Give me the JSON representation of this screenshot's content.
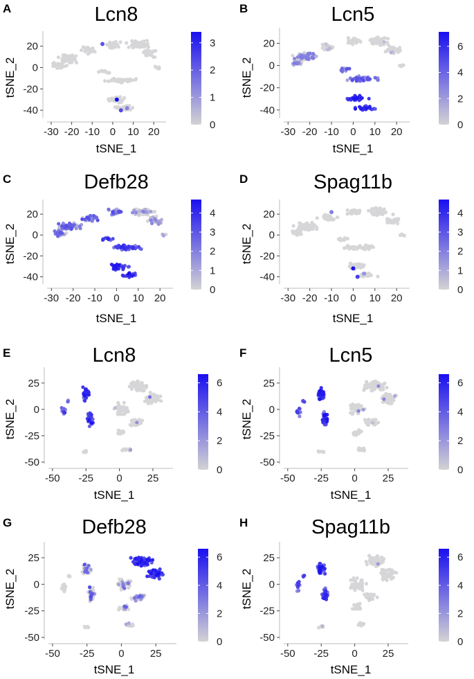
{
  "figure": {
    "background": "#ffffff"
  },
  "colors": {
    "low": "#d3d3d3",
    "high": "#1a0ff0",
    "point_base": "#d6d6d8"
  },
  "chart_data": [
    {
      "type": "scatter",
      "panel": "A",
      "title": "Lcn8",
      "xlabel": "tSNE_1",
      "ylabel": "tSNE_2",
      "xlim": [
        -32,
        26
      ],
      "ylim": [
        -47,
        34
      ],
      "xticks": [
        -30,
        -20,
        -10,
        0,
        10,
        20
      ],
      "yticks": [
        20,
        0,
        -20,
        -40
      ],
      "colorbar": {
        "min": 0,
        "max": 3.4,
        "ticks": [
          0,
          1,
          2,
          3
        ]
      },
      "expression": "sparse",
      "highlights": [
        {
          "x": 2,
          "y": -30,
          "v": 3.4
        },
        {
          "x": 4,
          "y": -40,
          "v": 2.4
        },
        {
          "x": -5,
          "y": 22,
          "v": 2.2
        },
        {
          "x": 7,
          "y": -38,
          "v": 1.4
        }
      ]
    },
    {
      "type": "scatter",
      "panel": "B",
      "title": "Lcn5",
      "xlabel": "tSNE_1",
      "ylabel": "tSNE_2",
      "xlim": [
        -32,
        26
      ],
      "ylim": [
        -47,
        34
      ],
      "xticks": [
        -30,
        -20,
        -10,
        0,
        10,
        20
      ],
      "yticks": [
        20,
        0,
        -20,
        -40
      ],
      "colorbar": {
        "min": 0,
        "max": 7.1,
        "ticks": [
          0,
          2,
          4,
          6
        ]
      },
      "expression": "lower_cluster_high"
    },
    {
      "type": "scatter",
      "panel": "C",
      "title": "Defb28",
      "xlabel": "tSNE_1",
      "ylabel": "tSNE_2",
      "xlim": [
        -32,
        26
      ],
      "ylim": [
        -47,
        34
      ],
      "xticks": [
        -30,
        -20,
        -10,
        0,
        10,
        20
      ],
      "yticks": [
        20,
        0,
        -20,
        -40
      ],
      "colorbar": {
        "min": 0,
        "max": 4.7,
        "ticks": [
          0,
          1,
          2,
          3,
          4
        ]
      },
      "expression": "broad"
    },
    {
      "type": "scatter",
      "panel": "D",
      "title": "Spag11b",
      "xlabel": "tSNE_1",
      "ylabel": "tSNE_2",
      "xlim": [
        -32,
        26
      ],
      "ylim": [
        -47,
        34
      ],
      "xticks": [
        -30,
        -20,
        -10,
        0,
        10,
        20
      ],
      "yticks": [
        20,
        0,
        -20,
        -40
      ],
      "colorbar": {
        "min": 0,
        "max": 4.7,
        "ticks": [
          0,
          1,
          2,
          3,
          4
        ]
      },
      "expression": "sparse",
      "highlights": [
        {
          "x": 0,
          "y": -32,
          "v": 4.6
        },
        {
          "x": 2,
          "y": -40,
          "v": 3.6
        },
        {
          "x": -10,
          "y": 22,
          "v": 2.0
        },
        {
          "x": 5,
          "y": -37,
          "v": 1.5
        }
      ]
    },
    {
      "type": "scatter",
      "panel": "E",
      "title": "Lcn8",
      "xlabel": "tSNE_1",
      "ylabel": "tSNE_2",
      "xlim": [
        -53,
        40
      ],
      "ylim": [
        -52,
        40
      ],
      "xticks": [
        -50,
        -25,
        0,
        25
      ],
      "yticks": [
        25,
        0,
        -25,
        -50
      ],
      "colorbar": {
        "min": 0,
        "max": 6.6,
        "ticks": [
          0,
          2,
          4,
          6
        ]
      },
      "expression": "left_group_high"
    },
    {
      "type": "scatter",
      "panel": "F",
      "title": "Lcn5",
      "xlabel": "tSNE_1",
      "ylabel": "tSNE_2",
      "xlim": [
        -53,
        40
      ],
      "ylim": [
        -52,
        40
      ],
      "xticks": [
        -50,
        -25,
        0,
        25
      ],
      "yticks": [
        25,
        0,
        -25,
        -50
      ],
      "colorbar": {
        "min": 0,
        "max": 6.6,
        "ticks": [
          0,
          2,
          4,
          6
        ]
      },
      "expression": "left_group_high"
    },
    {
      "type": "scatter",
      "panel": "G",
      "title": "Defb28",
      "xlabel": "tSNE_1",
      "ylabel": "tSNE_2",
      "xlim": [
        -53,
        40
      ],
      "ylim": [
        -52,
        40
      ],
      "xticks": [
        -50,
        -25,
        0,
        25
      ],
      "yticks": [
        25,
        0,
        -25,
        -50
      ],
      "colorbar": {
        "min": 0,
        "max": 6.6,
        "ticks": [
          0,
          2,
          4,
          6
        ]
      },
      "expression": "right_group_high"
    },
    {
      "type": "scatter",
      "panel": "H",
      "title": "Spag11b",
      "xlabel": "tSNE_1",
      "ylabel": "tSNE_2",
      "xlim": [
        -53,
        40
      ],
      "ylim": [
        -52,
        40
      ],
      "xticks": [
        -50,
        -25,
        0,
        25
      ],
      "yticks": [
        25,
        0,
        -25,
        -50
      ],
      "colorbar": {
        "min": 0,
        "max": 6.6,
        "ticks": [
          0,
          2,
          4,
          6
        ]
      },
      "expression": "left_group_high"
    }
  ]
}
